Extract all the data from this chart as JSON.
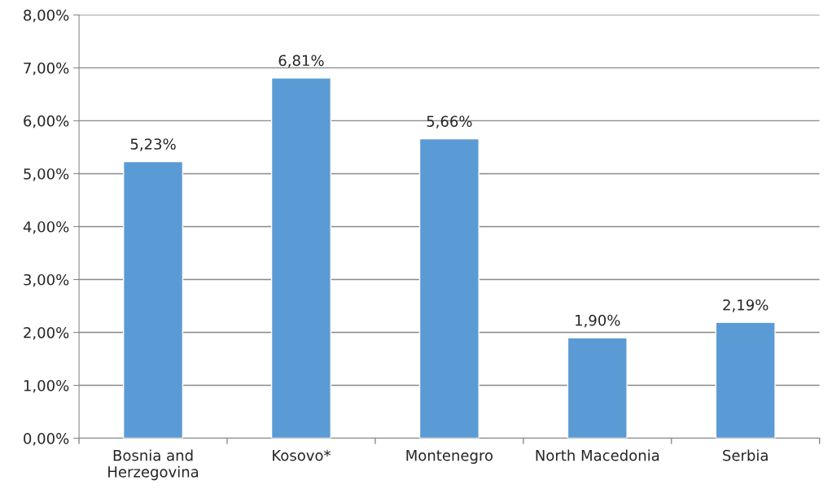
{
  "chart_data": {
    "type": "bar",
    "categories": [
      "Bosnia and\nHerzegovina",
      "Kosovo*",
      "Montenegro",
      "North Macedonia",
      "Serbia"
    ],
    "values": [
      5.23,
      6.81,
      5.66,
      1.9,
      2.19
    ],
    "value_labels": [
      "5,23%",
      "6,81%",
      "5,66%",
      "1,90%",
      "2,19%"
    ],
    "color": "#5b9bd5",
    "ylim": [
      0,
      8
    ],
    "yticks": [
      {
        "value": 0,
        "label": "0,00%"
      },
      {
        "value": 1,
        "label": "1,00%"
      },
      {
        "value": 2,
        "label": "2,00%"
      },
      {
        "value": 3,
        "label": "3,00%"
      },
      {
        "value": 4,
        "label": "4,00%"
      },
      {
        "value": 5,
        "label": "5,00%"
      },
      {
        "value": 6,
        "label": "6,00%"
      },
      {
        "value": 7,
        "label": "7,00%"
      },
      {
        "value": 8,
        "label": "8,00%"
      }
    ],
    "grid": "y"
  }
}
